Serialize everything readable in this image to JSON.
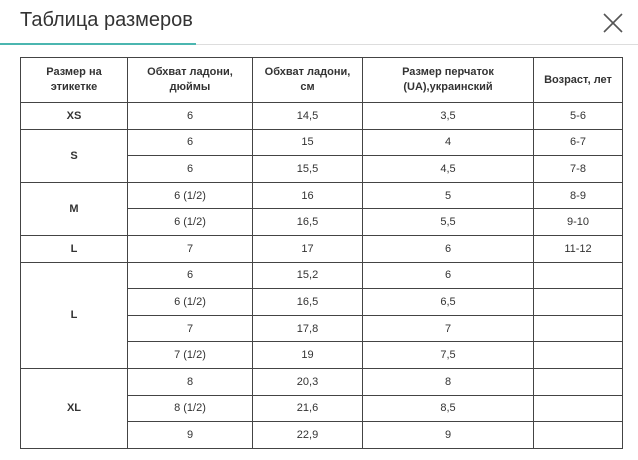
{
  "header": {
    "title": "Таблица размеров"
  },
  "table": {
    "columns": [
      "Размер на этикетке",
      "Обхват ладони, дюймы",
      "Обхват ладони, см",
      "Размер перчаток (UA),украинский",
      "Возраст, лет"
    ],
    "groups": [
      {
        "size": "XS",
        "rows": [
          [
            "6",
            "14,5",
            "3,5",
            "5-6"
          ]
        ]
      },
      {
        "size": "S",
        "rows": [
          [
            "6",
            "15",
            "4",
            "6-7"
          ],
          [
            "6",
            "15,5",
            "4,5",
            "7-8"
          ]
        ]
      },
      {
        "size": "M",
        "rows": [
          [
            "6 (1/2)",
            "16",
            "5",
            "8-9"
          ],
          [
            "6 (1/2)",
            "16,5",
            "5,5",
            "9-10"
          ]
        ]
      },
      {
        "size": "L",
        "rows": [
          [
            "7",
            "17",
            "6",
            "11-12"
          ]
        ]
      },
      {
        "size": "L",
        "rows": [
          [
            "6",
            "15,2",
            "6"
          ],
          [
            "6 (1/2)",
            "16,5",
            "6,5"
          ],
          [
            "7",
            "17,8",
            "7"
          ],
          [
            "7 (1/2)",
            "19",
            "7,5"
          ]
        ]
      },
      {
        "size": "XL",
        "rows": [
          [
            "8",
            "20,3",
            "8"
          ],
          [
            "8 (1/2)",
            "21,6",
            "8,5"
          ],
          [
            "9",
            "22,9",
            "9"
          ]
        ]
      }
    ]
  }
}
